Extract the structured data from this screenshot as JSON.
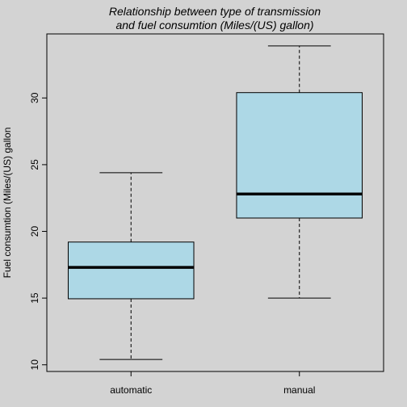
{
  "chart_data": {
    "type": "boxplot",
    "title": [
      "Relationship between type of transmission",
      "and fuel consumtion (Miles/(US) gallon)"
    ],
    "xlabel": "",
    "ylabel": "Fuel consumtion (Miles/(US) gallon",
    "categories": [
      "automatic",
      "manual"
    ],
    "boxes": [
      {
        "min": 10.4,
        "q1": 14.95,
        "median": 17.3,
        "q3": 19.2,
        "max": 24.4
      },
      {
        "min": 15.0,
        "q1": 21.0,
        "median": 22.8,
        "q3": 30.4,
        "max": 33.9
      }
    ],
    "ylim": [
      9.5,
      34.8
    ],
    "yticks": [
      10,
      15,
      20,
      25,
      30
    ],
    "box_fill": "#add8e6",
    "background": "#d3d3d3",
    "grid": false
  }
}
